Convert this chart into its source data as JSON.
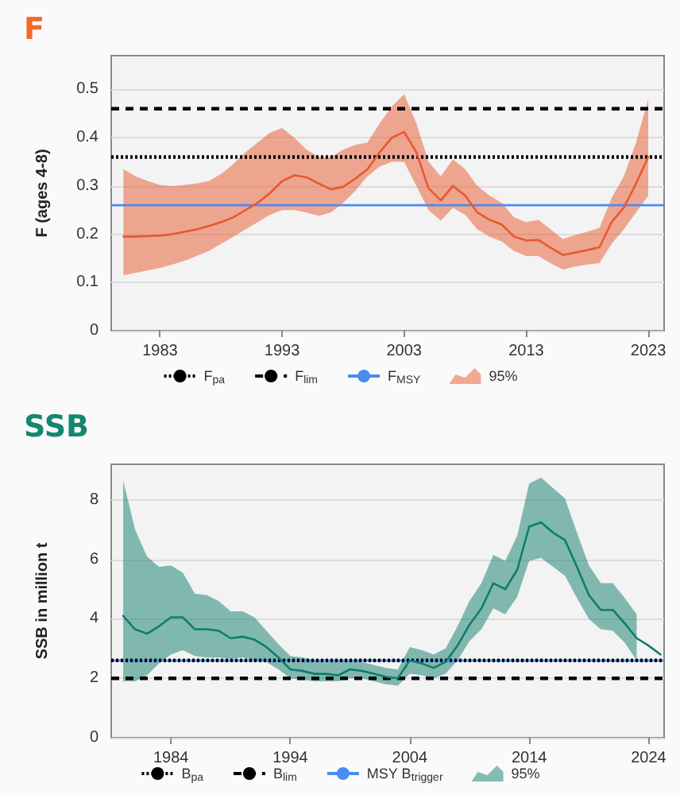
{
  "chart_data": [
    {
      "type": "line",
      "title": "F",
      "ylabel": "F (ages 4-8)",
      "legend": "bottom",
      "grid": "y",
      "marker": "none",
      "line_style": "solid",
      "x": [
        1980,
        1981,
        1982,
        1983,
        1984,
        1985,
        1986,
        1987,
        1988,
        1989,
        1990,
        1991,
        1992,
        1993,
        1994,
        1995,
        1996,
        1997,
        1998,
        1999,
        2000,
        2001,
        2002,
        2003,
        2004,
        2005,
        2006,
        2007,
        2008,
        2009,
        2010,
        2011,
        2012,
        2013,
        2014,
        2015,
        2016,
        2017,
        2018,
        2019,
        2020,
        2021,
        2022,
        2023
      ],
      "series": [
        {
          "name": "95%",
          "color": "#e8582e",
          "values": [
            0.195,
            0.195,
            0.196,
            0.197,
            0.2,
            0.205,
            0.21,
            0.217,
            0.225,
            0.235,
            0.25,
            0.265,
            0.285,
            0.31,
            0.322,
            0.318,
            0.305,
            0.293,
            0.298,
            0.315,
            0.335,
            0.37,
            0.4,
            0.412,
            0.37,
            0.295,
            0.27,
            0.3,
            0.28,
            0.245,
            0.23,
            0.22,
            0.195,
            0.187,
            0.188,
            0.172,
            0.157,
            0.162,
            0.167,
            0.173,
            0.225,
            0.255,
            0.305,
            0.36
          ],
          "lower": [
            0.115,
            0.12,
            0.125,
            0.13,
            0.137,
            0.145,
            0.155,
            0.165,
            0.18,
            0.195,
            0.21,
            0.225,
            0.24,
            0.25,
            0.25,
            0.245,
            0.238,
            0.245,
            0.265,
            0.29,
            0.32,
            0.34,
            0.35,
            0.35,
            0.3,
            0.25,
            0.228,
            0.255,
            0.24,
            0.21,
            0.195,
            0.185,
            0.165,
            0.155,
            0.155,
            0.14,
            0.127,
            0.133,
            0.137,
            0.14,
            0.18,
            0.21,
            0.245,
            0.28
          ],
          "upper": [
            0.335,
            0.32,
            0.31,
            0.302,
            0.3,
            0.302,
            0.305,
            0.31,
            0.325,
            0.345,
            0.37,
            0.39,
            0.41,
            0.42,
            0.4,
            0.375,
            0.36,
            0.36,
            0.375,
            0.385,
            0.39,
            0.43,
            0.465,
            0.49,
            0.43,
            0.35,
            0.32,
            0.355,
            0.335,
            0.3,
            0.28,
            0.265,
            0.235,
            0.225,
            0.23,
            0.21,
            0.19,
            0.198,
            0.205,
            0.213,
            0.275,
            0.32,
            0.39,
            0.48
          ]
        }
      ],
      "xlim": [
        1979,
        2024.3
      ],
      "xticks": [
        1983,
        1993,
        2003,
        2013,
        2023
      ],
      "ylim": [
        0,
        0.57
      ],
      "yticks": [
        0,
        0.1,
        0.2,
        0.3,
        0.4,
        0.5
      ],
      "ref_lines": [
        {
          "axis": "y",
          "value": 0.36,
          "label": "F$_{pa}$",
          "color": "#000000",
          "line_style": "dotted"
        },
        {
          "axis": "y",
          "value": 0.46,
          "label": "F$_{lim}$",
          "color": "#000000",
          "line_style": "dashed"
        },
        {
          "axis": "y",
          "value": 0.26,
          "label": "F$_{MSY}$",
          "color": "#4a8cf0",
          "line_style": "solid"
        }
      ]
    },
    {
      "type": "line",
      "title": "SSB",
      "ylabel": "SSB in million t",
      "legend": "bottom",
      "grid": "y",
      "marker": "none",
      "line_style": "solid",
      "x": [
        1980,
        1981,
        1982,
        1983,
        1984,
        1985,
        1986,
        1987,
        1988,
        1989,
        1990,
        1991,
        1992,
        1993,
        1994,
        1995,
        1996,
        1997,
        1998,
        1999,
        2000,
        2001,
        2002,
        2003,
        2004,
        2005,
        2006,
        2007,
        2008,
        2009,
        2010,
        2011,
        2012,
        2013,
        2014,
        2015,
        2016,
        2017,
        2018,
        2019,
        2020,
        2021,
        2022,
        2023,
        2024,
        2025
      ],
      "series": [
        {
          "name": "95%",
          "color": "#0e7d6c",
          "values": [
            4.1,
            3.65,
            3.5,
            3.75,
            4.05,
            4.05,
            3.65,
            3.65,
            3.6,
            3.35,
            3.4,
            3.3,
            3.05,
            2.7,
            2.3,
            2.25,
            2.15,
            2.15,
            2.1,
            2.3,
            2.25,
            2.15,
            2.05,
            2.0,
            2.6,
            2.5,
            2.35,
            2.55,
            3.1,
            3.8,
            4.35,
            5.2,
            5.0,
            5.65,
            7.1,
            7.25,
            6.9,
            6.65,
            5.75,
            4.8,
            4.3,
            4.3,
            3.85,
            3.35,
            3.1,
            2.8
          ],
          "lower": [
            1.9,
            1.9,
            2.1,
            2.5,
            2.8,
            2.95,
            2.75,
            2.7,
            2.7,
            2.65,
            2.7,
            2.6,
            2.55,
            2.3,
            2.0,
            1.95,
            1.9,
            1.9,
            1.9,
            2.0,
            2.0,
            1.9,
            1.8,
            1.75,
            2.15,
            2.1,
            2.0,
            2.15,
            2.6,
            3.25,
            3.65,
            4.35,
            4.15,
            4.75,
            5.95,
            6.05,
            5.75,
            5.45,
            4.7,
            4.0,
            3.65,
            3.6,
            3.2,
            2.6,
            null,
            null
          ],
          "upper": [
            8.65,
            7.0,
            6.1,
            5.75,
            5.8,
            5.55,
            4.85,
            4.8,
            4.6,
            4.25,
            4.25,
            4.05,
            3.6,
            3.15,
            2.75,
            2.7,
            2.6,
            2.55,
            2.6,
            2.6,
            2.55,
            2.45,
            2.35,
            2.3,
            3.05,
            2.95,
            2.8,
            3.0,
            3.75,
            4.6,
            5.2,
            6.15,
            5.95,
            6.8,
            8.55,
            8.75,
            8.4,
            8.05,
            6.9,
            5.8,
            5.2,
            5.2,
            4.7,
            4.15,
            null,
            null
          ]
        }
      ],
      "xlim": [
        1979,
        2025.3
      ],
      "xticks": [
        1984,
        1994,
        2004,
        2014,
        2024
      ],
      "ylim": [
        0,
        9.2
      ],
      "yticks": [
        0,
        2,
        4,
        6,
        8
      ],
      "ref_lines": [
        {
          "axis": "y",
          "value": 2.6,
          "label": "B$_{pa}$",
          "color": "#000000",
          "line_style": "dotted"
        },
        {
          "axis": "y",
          "value": 2.0,
          "label": "B$_{lim}$",
          "color": "#000000",
          "line_style": "dashed"
        },
        {
          "axis": "y",
          "value": 2.6,
          "label": "MSY B$_{trigger}$",
          "color": "#4a8cf0",
          "line_style": "solid"
        }
      ]
    }
  ]
}
